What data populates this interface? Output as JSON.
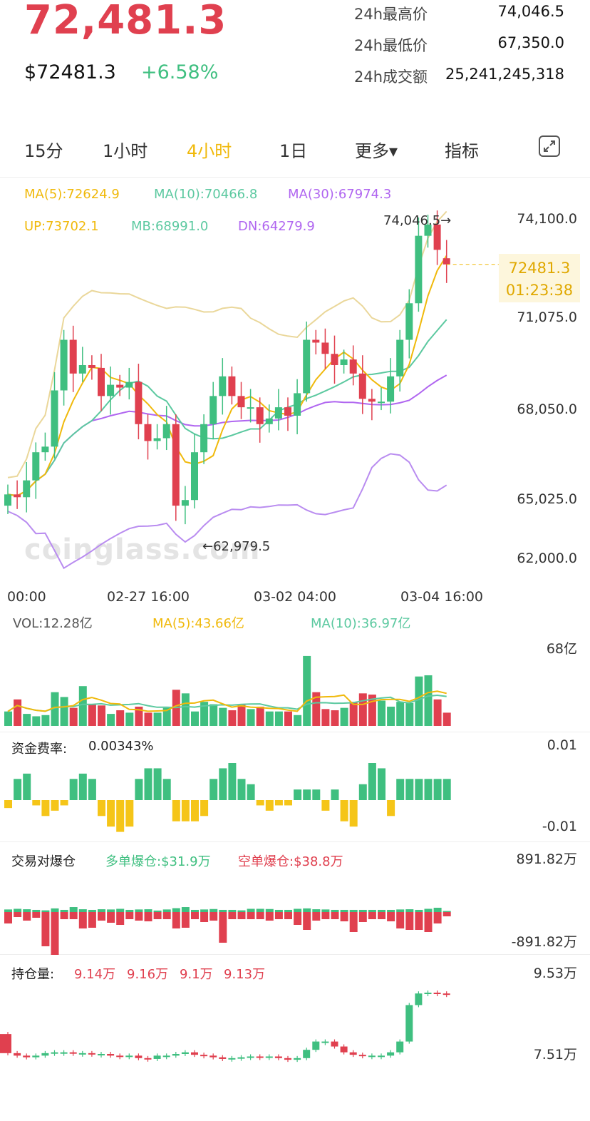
{
  "header": {
    "price": "72,481.3",
    "usd_price": "$72481.3",
    "change_pct": "+6.58%",
    "stats": [
      {
        "label": "24h最高价",
        "value": "74,046.5"
      },
      {
        "label": "24h最低价",
        "value": "67,350.0"
      },
      {
        "label": "24h成交额",
        "value": "25,241,245,318"
      }
    ]
  },
  "tabs": [
    {
      "label": "15分",
      "active": false
    },
    {
      "label": "1小时",
      "active": false
    },
    {
      "label": "4小时",
      "active": true
    },
    {
      "label": "1日",
      "active": false
    },
    {
      "label": "更多▾",
      "active": false
    },
    {
      "label": "指标",
      "active": false
    }
  ],
  "main_indicators": {
    "ma5": "MA(5):72624.9",
    "ma10": "MA(10):70466.8",
    "ma30": "MA(30):67974.3",
    "up": "UP:73702.1",
    "mb": "MB:68991.0",
    "dn": "DN:64279.9"
  },
  "colors": {
    "up": "#3fbf80",
    "down": "#e0404f",
    "ma5": "#f0b90b",
    "ma10": "#5cc9a0",
    "ma30": "#b066f0",
    "boll_up": "#ead79a",
    "boll_dn": "#b98cf0",
    "funding_neg": "#f5c518"
  },
  "watermark": "coinglass.com",
  "price_tag": {
    "price": "72481.3",
    "countdown": "01:23:38"
  },
  "high_label": "74,046.5→",
  "low_label": "←62,979.5",
  "volume_panel": {
    "vol": "VOL:12.28亿",
    "ma5": "MA(5):43.66亿",
    "ma10": "MA(10):36.97亿",
    "ymax": "68亿"
  },
  "funding_panel": {
    "label": "资金费率:",
    "value": "0.00343%",
    "ymax": "0.01",
    "ymin": "-0.01"
  },
  "liq_panel": {
    "label": "交易对爆仓",
    "long": "多单爆仓:$31.9万",
    "short": "空单爆仓:$38.8万",
    "ymax": "891.82万",
    "ymin": "-891.82万"
  },
  "oi_panel": {
    "label": "持仓量:",
    "v1": "9.14万",
    "v2": "9.16万",
    "v3": "9.1万",
    "v4": "9.13万",
    "ymax": "9.53万",
    "ymin": "7.51万"
  },
  "chart_data": [
    {
      "type": "candlestick",
      "timeframe": "4小时",
      "y_tick_labels": [
        "74,100.0",
        "71,075.0",
        "68,050.0",
        "65,025.0",
        "62,000.0"
      ],
      "ylim": [
        62000,
        74100
      ],
      "x_tick_labels": [
        "00:00",
        "02-27 16:00",
        "03-02 04:00",
        "03-04 16:00"
      ],
      "series": [
        {
          "name": "MA(5)",
          "last": 72624.9
        },
        {
          "name": "MA(10)",
          "last": 70466.8
        },
        {
          "name": "MA(30)",
          "last": 67974.3
        },
        {
          "name": "UP",
          "last": 73702.1
        },
        {
          "name": "MB",
          "last": 68991.0
        },
        {
          "name": "DN",
          "last": 64279.9
        }
      ],
      "max_marker": 74046.5,
      "min_marker": 62979.5,
      "candles_close": [
        64300,
        64200,
        64800,
        65800,
        66000,
        68000,
        69800,
        68600,
        68900,
        68800,
        67800,
        68200,
        68100,
        68300,
        66800,
        66200,
        66300,
        66800,
        63900,
        64100,
        65800,
        66800,
        67800,
        68500,
        67800,
        67400,
        67400,
        66800,
        67000,
        67400,
        67100,
        67900,
        69800,
        69700,
        69300,
        68900,
        69100,
        68600,
        67700,
        67600,
        67600,
        68500,
        69800,
        71100,
        73500,
        73900,
        73000,
        72481.3
      ],
      "candles_open": [
        63900,
        64300,
        64200,
        64800,
        65800,
        66000,
        68000,
        69800,
        68600,
        68900,
        68800,
        67800,
        68200,
        68100,
        68300,
        66800,
        66200,
        66300,
        66800,
        63900,
        64100,
        65800,
        66800,
        67800,
        68500,
        67800,
        67400,
        67400,
        66800,
        67000,
        67400,
        67100,
        67900,
        69800,
        69700,
        69300,
        68900,
        69100,
        68600,
        67700,
        67600,
        67600,
        68500,
        69800,
        71100,
        73500,
        73900,
        72700
      ]
    },
    {
      "type": "bar",
      "name": "VOL",
      "ymax_label": "68亿",
      "values": [
        12,
        22,
        10,
        8,
        9,
        28,
        24,
        15,
        33,
        18,
        17,
        10,
        13,
        11,
        16,
        11,
        11,
        15,
        30,
        27,
        12,
        20,
        18,
        15,
        13,
        18,
        14,
        16,
        12,
        12,
        12,
        9,
        58,
        28,
        14,
        13,
        15,
        20,
        27,
        26,
        21,
        16,
        20,
        19,
        41,
        42,
        22,
        11
      ]
    },
    {
      "type": "bar",
      "name": "资金费率",
      "ylim": [
        -0.01,
        0.01
      ],
      "values": [
        -0.0015,
        0.004,
        0.005,
        -0.001,
        -0.003,
        -0.002,
        -0.001,
        0.004,
        0.005,
        0.004,
        -0.003,
        -0.005,
        -0.006,
        -0.005,
        0.004,
        0.006,
        0.006,
        0.004,
        -0.004,
        -0.004,
        -0.004,
        -0.003,
        0.004,
        0.006,
        0.007,
        0.004,
        0.003,
        -0.001,
        -0.002,
        -0.001,
        -0.001,
        0.002,
        0.002,
        0.002,
        -0.002,
        0.002,
        -0.004,
        -0.005,
        0.003,
        0.007,
        0.006,
        -0.003,
        0.004,
        0.004,
        0.004,
        0.004,
        0.004,
        0.004
      ]
    },
    {
      "type": "bar",
      "name": "交易对爆仓",
      "ylim": [
        -891.82,
        891.82
      ],
      "long_values": [
        120,
        150,
        130,
        100,
        80,
        170,
        100,
        230,
        130,
        100,
        130,
        120,
        150,
        100,
        120,
        130,
        70,
        120,
        180,
        230,
        100,
        120,
        140,
        100,
        100,
        80,
        150,
        150,
        140,
        100,
        100,
        150,
        170,
        130,
        120,
        100,
        100,
        100,
        100,
        100,
        100,
        100,
        120,
        130,
        100,
        150,
        200,
        50
      ],
      "short_values": [
        -160,
        -70,
        -120,
        -80,
        -480,
        -600,
        -100,
        -100,
        -230,
        -220,
        -120,
        -150,
        -180,
        -100,
        -120,
        -130,
        -100,
        -100,
        -230,
        -220,
        -100,
        -140,
        -120,
        -430,
        -100,
        -100,
        -100,
        -100,
        -120,
        -100,
        -100,
        -180,
        -250,
        -120,
        -100,
        -100,
        -130,
        -280,
        -140,
        -100,
        -100,
        -130,
        -230,
        -250,
        -250,
        -280,
        -160,
        -60
      ]
    },
    {
      "type": "candlestick",
      "name": "持仓量",
      "ylim": [
        7.51,
        9.53
      ],
      "close": [
        7.52,
        7.49,
        7.47,
        7.49,
        7.52,
        7.53,
        7.53,
        7.52,
        7.52,
        7.51,
        7.51,
        7.49,
        7.48,
        7.49,
        7.46,
        7.45,
        7.49,
        7.49,
        7.51,
        7.53,
        7.5,
        7.49,
        7.47,
        7.45,
        7.46,
        7.47,
        7.48,
        7.47,
        7.48,
        7.46,
        7.44,
        7.46,
        7.56,
        7.66,
        7.66,
        7.6,
        7.53,
        7.5,
        7.49,
        7.49,
        7.49,
        7.53,
        7.66,
        8.1,
        8.24,
        8.25,
        8.24,
        8.23
      ],
      "open": [
        7.75,
        7.52,
        7.49,
        7.47,
        7.49,
        7.52,
        7.53,
        7.53,
        7.52,
        7.52,
        7.51,
        7.51,
        7.49,
        7.48,
        7.49,
        7.46,
        7.45,
        7.49,
        7.49,
        7.51,
        7.53,
        7.5,
        7.49,
        7.47,
        7.45,
        7.46,
        7.47,
        7.48,
        7.47,
        7.48,
        7.46,
        7.44,
        7.46,
        7.56,
        7.66,
        7.66,
        7.6,
        7.53,
        7.5,
        7.49,
        7.49,
        7.49,
        7.53,
        7.66,
        8.1,
        8.24,
        8.25,
        8.24
      ]
    }
  ]
}
